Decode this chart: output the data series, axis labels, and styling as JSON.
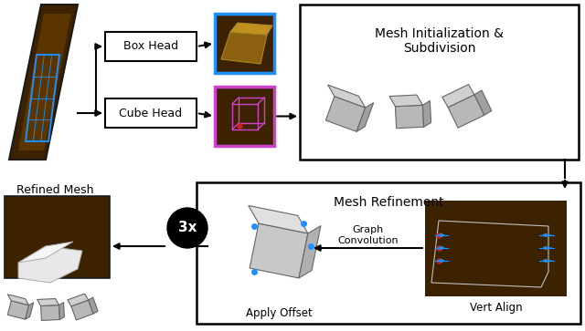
{
  "bg_color": "#ffffff",
  "box_head_label": "Box Head",
  "cube_head_label": "Cube Head",
  "mesh_init_label": "Mesh Initialization &\nSubdivision",
  "mesh_refine_label": "Mesh Refinement",
  "refined_mesh_label": "Refined Mesh",
  "apply_offset_label": "Apply Offset",
  "graph_conv_label": "Graph\nConvolution",
  "vert_align_label": "Vert Align",
  "repeat_label": "3x",
  "dark_bg": "#3d2200",
  "blue_bbox": "#1e90ff",
  "purple_bbox": "#cc44cc",
  "arrow_color": "#111111"
}
